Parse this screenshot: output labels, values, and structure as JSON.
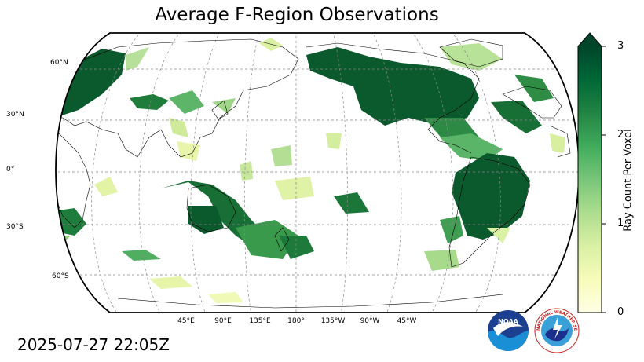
{
  "title": "Average F-Region Observations",
  "timestamp": "2025-07-27 22:05Z",
  "map": {
    "projection": "Robinson, centered 180°",
    "lat_labels": [
      "60°N",
      "30°N",
      "0°",
      "30°S",
      "60°S"
    ],
    "lon_labels": [
      "45°E",
      "90°E",
      "135°E",
      "180°",
      "135°W",
      "90°W",
      "45°W"
    ]
  },
  "colorbar": {
    "label": "Ray Count Per Voxel",
    "ticks": [
      "0",
      "1",
      "2",
      "3"
    ],
    "range": [
      0,
      3
    ],
    "extend": "max",
    "colormap": "YlGn",
    "colors": [
      "#ffffe5",
      "#f7fcb9",
      "#d9f0a3",
      "#addd8e",
      "#78c679",
      "#41ab5d",
      "#238443",
      "#006837",
      "#004529"
    ]
  },
  "logos": {
    "noaa": "NOAA",
    "nws": "NATIONAL WEATHER SERVICE"
  }
}
